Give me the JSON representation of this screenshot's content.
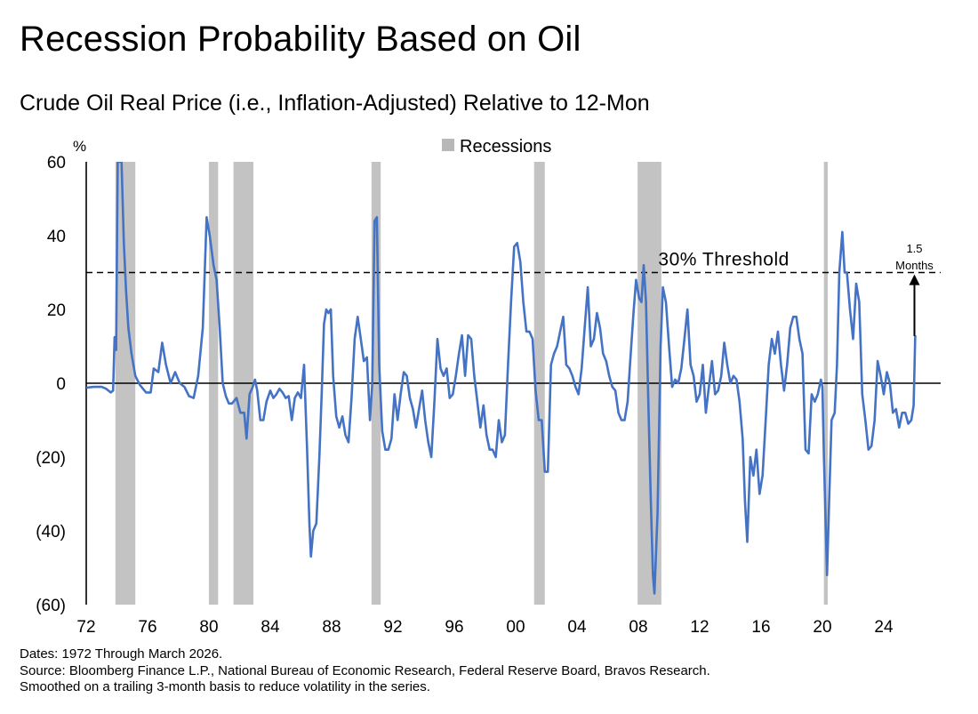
{
  "header": {
    "title": "Recession Probability Based on Oil",
    "subtitle": "Crude Oil Real Price (i.e., Inflation-Adjusted) Relative to 12-Mon"
  },
  "footer": {
    "dates": "Dates: 1972 Through March 2026.",
    "source": "Source: Bloomberg Finance L.P., National Bureau of Economic Research, Federal Reserve Board, Bravos Research.",
    "note": "Smoothed on a trailing 3-month basis to reduce volatility in the series."
  },
  "chart_data": {
    "type": "line",
    "ylabel": "%",
    "xlim": [
      1972,
      2026.5
    ],
    "ylim": [
      -60,
      60
    ],
    "yticks": [
      {
        "value": 60,
        "label": "60"
      },
      {
        "value": 40,
        "label": "40"
      },
      {
        "value": 20,
        "label": "20"
      },
      {
        "value": 0,
        "label": "0"
      },
      {
        "value": -20,
        "label": "(20)"
      },
      {
        "value": -40,
        "label": "(40)"
      },
      {
        "value": -60,
        "label": "(60)"
      }
    ],
    "xticks": [
      {
        "value": 1972,
        "label": "72"
      },
      {
        "value": 1976,
        "label": "76"
      },
      {
        "value": 1980,
        "label": "80"
      },
      {
        "value": 1984,
        "label": "84"
      },
      {
        "value": 1988,
        "label": "88"
      },
      {
        "value": 1992,
        "label": "92"
      },
      {
        "value": 1996,
        "label": "96"
      },
      {
        "value": 2000,
        "label": "00"
      },
      {
        "value": 2004,
        "label": "04"
      },
      {
        "value": 2008,
        "label": "08"
      },
      {
        "value": 2012,
        "label": "12"
      },
      {
        "value": 2016,
        "label": "16"
      },
      {
        "value": 2020,
        "label": "20"
      },
      {
        "value": 2024,
        "label": "24"
      }
    ],
    "legend": {
      "label": "Recessions",
      "color": "#b8b8b8",
      "position": "top-center"
    },
    "recessions": [
      [
        1973.9,
        1975.2
      ],
      [
        1980.0,
        1980.6
      ],
      [
        1981.6,
        1982.9
      ],
      [
        1990.6,
        1991.2
      ],
      [
        2001.2,
        2001.9
      ],
      [
        2007.95,
        2009.5
      ],
      [
        2020.1,
        2020.35
      ]
    ],
    "threshold": {
      "value": 30,
      "label": "30% Threshold",
      "color": "#000000"
    },
    "annotation": {
      "label_line1": "1.5",
      "label_line2": "Months",
      "x": 2026.0,
      "from": 12.8,
      "to": 29.5
    },
    "series": [
      {
        "color": "#4472c4",
        "points": [
          [
            1972.0,
            -1.2
          ],
          [
            1972.5,
            -1.0
          ],
          [
            1973.0,
            -1.0
          ],
          [
            1973.3,
            -1.5
          ],
          [
            1973.6,
            -2.5
          ],
          [
            1973.75,
            -2.0
          ],
          [
            1973.85,
            12.5
          ],
          [
            1973.95,
            9.0
          ],
          [
            1974.05,
            60
          ],
          [
            1974.2,
            60
          ],
          [
            1974.3,
            60
          ],
          [
            1974.45,
            38
          ],
          [
            1974.6,
            25
          ],
          [
            1974.75,
            15
          ],
          [
            1974.95,
            8
          ],
          [
            1975.2,
            2
          ],
          [
            1975.5,
            -0.5
          ],
          [
            1975.9,
            -2.5
          ],
          [
            1976.2,
            -2.5
          ],
          [
            1976.4,
            4
          ],
          [
            1976.7,
            3
          ],
          [
            1976.95,
            11
          ],
          [
            1977.2,
            5
          ],
          [
            1977.5,
            0
          ],
          [
            1977.8,
            3
          ],
          [
            1978.1,
            0
          ],
          [
            1978.4,
            -1
          ],
          [
            1978.7,
            -3.5
          ],
          [
            1979.0,
            -4
          ],
          [
            1979.3,
            2
          ],
          [
            1979.6,
            15
          ],
          [
            1979.85,
            45
          ],
          [
            1980.05,
            40
          ],
          [
            1980.3,
            32
          ],
          [
            1980.5,
            28
          ],
          [
            1980.7,
            15
          ],
          [
            1980.9,
            0
          ],
          [
            1981.1,
            -3.5
          ],
          [
            1981.3,
            -5.5
          ],
          [
            1981.5,
            -5.5
          ],
          [
            1981.8,
            -4
          ],
          [
            1982.05,
            -8
          ],
          [
            1982.3,
            -8
          ],
          [
            1982.45,
            -15
          ],
          [
            1982.65,
            -3
          ],
          [
            1982.85,
            -1
          ],
          [
            1983.0,
            1
          ],
          [
            1983.15,
            -2
          ],
          [
            1983.35,
            -10
          ],
          [
            1983.55,
            -10
          ],
          [
            1983.75,
            -5
          ],
          [
            1984.0,
            -2
          ],
          [
            1984.2,
            -4
          ],
          [
            1984.4,
            -3
          ],
          [
            1984.6,
            -1.5
          ],
          [
            1984.8,
            -2.5
          ],
          [
            1985.0,
            -4
          ],
          [
            1985.2,
            -3.5
          ],
          [
            1985.4,
            -10
          ],
          [
            1985.6,
            -4
          ],
          [
            1985.8,
            -2.5
          ],
          [
            1986.0,
            -4
          ],
          [
            1986.2,
            5
          ],
          [
            1986.4,
            -18
          ],
          [
            1986.55,
            -38
          ],
          [
            1986.65,
            -47
          ],
          [
            1986.8,
            -40
          ],
          [
            1987.0,
            -38
          ],
          [
            1987.2,
            -20
          ],
          [
            1987.35,
            -3
          ],
          [
            1987.5,
            16
          ],
          [
            1987.65,
            20
          ],
          [
            1987.8,
            19
          ],
          [
            1987.95,
            20
          ],
          [
            1988.1,
            2
          ],
          [
            1988.3,
            -9
          ],
          [
            1988.5,
            -12
          ],
          [
            1988.7,
            -9
          ],
          [
            1988.9,
            -14
          ],
          [
            1989.1,
            -16
          ],
          [
            1989.3,
            -4
          ],
          [
            1989.5,
            12
          ],
          [
            1989.7,
            18
          ],
          [
            1989.9,
            12
          ],
          [
            1990.1,
            6
          ],
          [
            1990.3,
            7
          ],
          [
            1990.5,
            -10
          ],
          [
            1990.65,
            0
          ],
          [
            1990.8,
            44
          ],
          [
            1990.95,
            45
          ],
          [
            1991.1,
            5
          ],
          [
            1991.3,
            -13
          ],
          [
            1991.5,
            -18
          ],
          [
            1991.7,
            -18
          ],
          [
            1991.9,
            -15
          ],
          [
            1992.1,
            -3
          ],
          [
            1992.3,
            -10
          ],
          [
            1992.5,
            -3
          ],
          [
            1992.7,
            3
          ],
          [
            1992.9,
            2
          ],
          [
            1993.1,
            -4
          ],
          [
            1993.3,
            -7
          ],
          [
            1993.5,
            -12
          ],
          [
            1993.7,
            -7
          ],
          [
            1993.9,
            -2
          ],
          [
            1994.1,
            -10
          ],
          [
            1994.3,
            -16
          ],
          [
            1994.5,
            -20
          ],
          [
            1994.7,
            -5
          ],
          [
            1994.9,
            12
          ],
          [
            1995.1,
            4
          ],
          [
            1995.3,
            2
          ],
          [
            1995.5,
            4
          ],
          [
            1995.7,
            -4
          ],
          [
            1995.9,
            -3
          ],
          [
            1996.1,
            2
          ],
          [
            1996.3,
            8
          ],
          [
            1996.5,
            13
          ],
          [
            1996.7,
            2
          ],
          [
            1996.9,
            13
          ],
          [
            1997.1,
            12
          ],
          [
            1997.3,
            2
          ],
          [
            1997.5,
            -5
          ],
          [
            1997.7,
            -12
          ],
          [
            1997.9,
            -6
          ],
          [
            1998.1,
            -14
          ],
          [
            1998.3,
            -18
          ],
          [
            1998.5,
            -18
          ],
          [
            1998.7,
            -20
          ],
          [
            1998.9,
            -10
          ],
          [
            1999.1,
            -16
          ],
          [
            1999.3,
            -14
          ],
          [
            1999.5,
            5
          ],
          [
            1999.7,
            22
          ],
          [
            1999.9,
            37
          ],
          [
            2000.1,
            38
          ],
          [
            2000.3,
            33
          ],
          [
            2000.5,
            22
          ],
          [
            2000.7,
            14
          ],
          [
            2000.9,
            14
          ],
          [
            2001.1,
            12
          ],
          [
            2001.3,
            -2
          ],
          [
            2001.5,
            -10
          ],
          [
            2001.7,
            -10
          ],
          [
            2001.9,
            -24
          ],
          [
            2002.1,
            -24
          ],
          [
            2002.3,
            5
          ],
          [
            2002.5,
            8
          ],
          [
            2002.7,
            10
          ],
          [
            2002.9,
            14
          ],
          [
            2003.1,
            18
          ],
          [
            2003.3,
            5
          ],
          [
            2003.5,
            4
          ],
          [
            2003.7,
            2
          ],
          [
            2003.9,
            -1
          ],
          [
            2004.1,
            -3
          ],
          [
            2004.3,
            4
          ],
          [
            2004.5,
            15
          ],
          [
            2004.7,
            26
          ],
          [
            2004.9,
            10
          ],
          [
            2005.1,
            12
          ],
          [
            2005.3,
            19
          ],
          [
            2005.5,
            15
          ],
          [
            2005.7,
            8
          ],
          [
            2005.9,
            6
          ],
          [
            2006.1,
            2
          ],
          [
            2006.3,
            -1
          ],
          [
            2006.5,
            -2
          ],
          [
            2006.7,
            -8
          ],
          [
            2006.9,
            -10
          ],
          [
            2007.1,
            -10
          ],
          [
            2007.3,
            -5
          ],
          [
            2007.5,
            8
          ],
          [
            2007.7,
            20
          ],
          [
            2007.85,
            28
          ],
          [
            2008.05,
            23
          ],
          [
            2008.2,
            22
          ],
          [
            2008.35,
            32
          ],
          [
            2008.5,
            22
          ],
          [
            2008.65,
            -5
          ],
          [
            2008.8,
            -30
          ],
          [
            2008.95,
            -52
          ],
          [
            2009.05,
            -57
          ],
          [
            2009.25,
            -35
          ],
          [
            2009.45,
            10
          ],
          [
            2009.6,
            26
          ],
          [
            2009.8,
            22
          ],
          [
            2010.0,
            10
          ],
          [
            2010.2,
            -1
          ],
          [
            2010.4,
            1
          ],
          [
            2010.6,
            0
          ],
          [
            2010.8,
            4
          ],
          [
            2011.0,
            12
          ],
          [
            2011.2,
            20
          ],
          [
            2011.4,
            5
          ],
          [
            2011.6,
            2
          ],
          [
            2011.8,
            -5
          ],
          [
            2012.0,
            -3
          ],
          [
            2012.2,
            5
          ],
          [
            2012.4,
            -8
          ],
          [
            2012.6,
            -1
          ],
          [
            2012.8,
            6
          ],
          [
            2013.0,
            -3
          ],
          [
            2013.2,
            -2
          ],
          [
            2013.4,
            2
          ],
          [
            2013.6,
            11
          ],
          [
            2013.8,
            5
          ],
          [
            2014.0,
            0
          ],
          [
            2014.2,
            2
          ],
          [
            2014.4,
            1
          ],
          [
            2014.6,
            -5
          ],
          [
            2014.8,
            -15
          ],
          [
            2014.95,
            -32
          ],
          [
            2015.1,
            -43
          ],
          [
            2015.3,
            -20
          ],
          [
            2015.5,
            -25
          ],
          [
            2015.7,
            -18
          ],
          [
            2015.9,
            -30
          ],
          [
            2016.1,
            -25
          ],
          [
            2016.3,
            -10
          ],
          [
            2016.5,
            5
          ],
          [
            2016.7,
            12
          ],
          [
            2016.9,
            8
          ],
          [
            2017.1,
            14
          ],
          [
            2017.3,
            5
          ],
          [
            2017.5,
            -2
          ],
          [
            2017.7,
            5
          ],
          [
            2017.9,
            15
          ],
          [
            2018.1,
            18
          ],
          [
            2018.3,
            18
          ],
          [
            2018.5,
            12
          ],
          [
            2018.7,
            8
          ],
          [
            2018.9,
            -18
          ],
          [
            2019.1,
            -19
          ],
          [
            2019.3,
            -3
          ],
          [
            2019.5,
            -5
          ],
          [
            2019.7,
            -3
          ],
          [
            2019.9,
            1
          ],
          [
            2020.0,
            -1
          ],
          [
            2020.1,
            -20
          ],
          [
            2020.3,
            -52
          ],
          [
            2020.45,
            -30
          ],
          [
            2020.6,
            -10
          ],
          [
            2020.8,
            -8
          ],
          [
            2020.95,
            5
          ],
          [
            2021.1,
            30
          ],
          [
            2021.3,
            41
          ],
          [
            2021.45,
            30
          ],
          [
            2021.6,
            30
          ],
          [
            2021.8,
            20
          ],
          [
            2022.0,
            12
          ],
          [
            2022.2,
            27
          ],
          [
            2022.4,
            22
          ],
          [
            2022.6,
            -3
          ],
          [
            2022.8,
            -10
          ],
          [
            2023.0,
            -18
          ],
          [
            2023.2,
            -17
          ],
          [
            2023.4,
            -10
          ],
          [
            2023.6,
            6
          ],
          [
            2023.8,
            2
          ],
          [
            2024.0,
            -3
          ],
          [
            2024.2,
            3
          ],
          [
            2024.4,
            0
          ],
          [
            2024.6,
            -8
          ],
          [
            2024.8,
            -7
          ],
          [
            2025.0,
            -12
          ],
          [
            2025.2,
            -8
          ],
          [
            2025.4,
            -8
          ],
          [
            2025.6,
            -11
          ],
          [
            2025.8,
            -10
          ],
          [
            2025.95,
            -6
          ],
          [
            2026.05,
            13
          ]
        ]
      }
    ]
  }
}
